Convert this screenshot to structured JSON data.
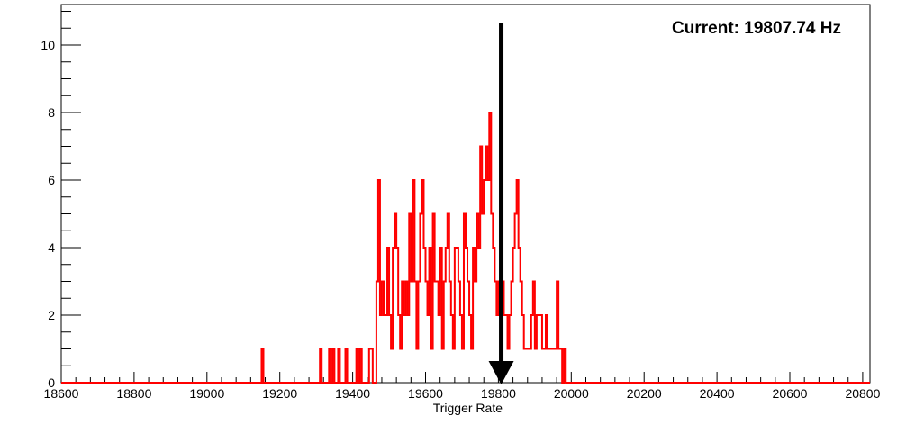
{
  "chart_data": {
    "type": "histogram",
    "title": "",
    "xlabel": "Trigger Rate",
    "ylabel": "",
    "xlim": [
      18600,
      20820
    ],
    "ylim": [
      0,
      11.2
    ],
    "x_ticks": [
      18600,
      18800,
      19000,
      19200,
      19400,
      19600,
      19800,
      20000,
      20200,
      20400,
      20600,
      20800
    ],
    "y_ticks": [
      0,
      2,
      4,
      6,
      8,
      10
    ],
    "bin_width": 5,
    "grid": false,
    "legend": "none",
    "line_color": "#ff0000",
    "series": [
      {
        "bins": [
          [
            19150,
            1
          ],
          [
            19310,
            1
          ],
          [
            19335,
            1
          ],
          [
            19345,
            1
          ],
          [
            19360,
            1
          ],
          [
            19380,
            1
          ],
          [
            19410,
            1
          ],
          [
            19420,
            1
          ],
          [
            19445,
            1
          ],
          [
            19450,
            1
          ],
          [
            19465,
            3
          ],
          [
            19470,
            6
          ],
          [
            19475,
            2
          ],
          [
            19480,
            3
          ],
          [
            19485,
            2
          ],
          [
            19490,
            2
          ],
          [
            19495,
            4
          ],
          [
            19500,
            2
          ],
          [
            19505,
            1
          ],
          [
            19510,
            4
          ],
          [
            19515,
            5
          ],
          [
            19520,
            4
          ],
          [
            19525,
            2
          ],
          [
            19530,
            1
          ],
          [
            19535,
            3
          ],
          [
            19540,
            2
          ],
          [
            19545,
            3
          ],
          [
            19550,
            2
          ],
          [
            19555,
            5
          ],
          [
            19560,
            3
          ],
          [
            19565,
            6
          ],
          [
            19570,
            3
          ],
          [
            19575,
            1
          ],
          [
            19580,
            3
          ],
          [
            19585,
            5
          ],
          [
            19590,
            6
          ],
          [
            19595,
            4
          ],
          [
            19600,
            3
          ],
          [
            19605,
            2
          ],
          [
            19610,
            4
          ],
          [
            19615,
            1
          ],
          [
            19620,
            5
          ],
          [
            19625,
            3
          ],
          [
            19630,
            3
          ],
          [
            19635,
            2
          ],
          [
            19640,
            4
          ],
          [
            19645,
            1
          ],
          [
            19650,
            3
          ],
          [
            19655,
            4
          ],
          [
            19660,
            5
          ],
          [
            19665,
            3
          ],
          [
            19670,
            2
          ],
          [
            19675,
            1
          ],
          [
            19680,
            4
          ],
          [
            19685,
            4
          ],
          [
            19690,
            3
          ],
          [
            19695,
            2
          ],
          [
            19700,
            1
          ],
          [
            19705,
            5
          ],
          [
            19710,
            4
          ],
          [
            19715,
            3
          ],
          [
            19720,
            2
          ],
          [
            19725,
            1
          ],
          [
            19730,
            4
          ],
          [
            19735,
            3
          ],
          [
            19740,
            5
          ],
          [
            19745,
            4
          ],
          [
            19750,
            7
          ],
          [
            19755,
            5
          ],
          [
            19760,
            6
          ],
          [
            19765,
            7
          ],
          [
            19770,
            6
          ],
          [
            19775,
            8
          ],
          [
            19780,
            5
          ],
          [
            19785,
            4
          ],
          [
            19790,
            3
          ],
          [
            19795,
            2
          ],
          [
            19800,
            3
          ],
          [
            19805,
            4
          ],
          [
            19810,
            3
          ],
          [
            19815,
            2
          ],
          [
            19820,
            2
          ],
          [
            19825,
            1
          ],
          [
            19830,
            2
          ],
          [
            19835,
            3
          ],
          [
            19840,
            4
          ],
          [
            19845,
            5
          ],
          [
            19850,
            6
          ],
          [
            19855,
            4
          ],
          [
            19860,
            3
          ],
          [
            19865,
            2
          ],
          [
            19870,
            1
          ],
          [
            19875,
            1
          ],
          [
            19880,
            1
          ],
          [
            19885,
            1
          ],
          [
            19890,
            2
          ],
          [
            19895,
            3
          ],
          [
            19900,
            1
          ],
          [
            19905,
            2
          ],
          [
            19910,
            2
          ],
          [
            19915,
            2
          ],
          [
            19920,
            1
          ],
          [
            19925,
            1
          ],
          [
            19930,
            2
          ],
          [
            19935,
            1
          ],
          [
            19940,
            1
          ],
          [
            19945,
            1
          ],
          [
            19950,
            1
          ],
          [
            19955,
            1
          ],
          [
            19960,
            3
          ],
          [
            19965,
            1
          ],
          [
            19970,
            1
          ],
          [
            19980,
            1
          ]
        ]
      }
    ],
    "marker": {
      "x": 19807.74,
      "label": "Current: 19807.74 Hz"
    }
  }
}
